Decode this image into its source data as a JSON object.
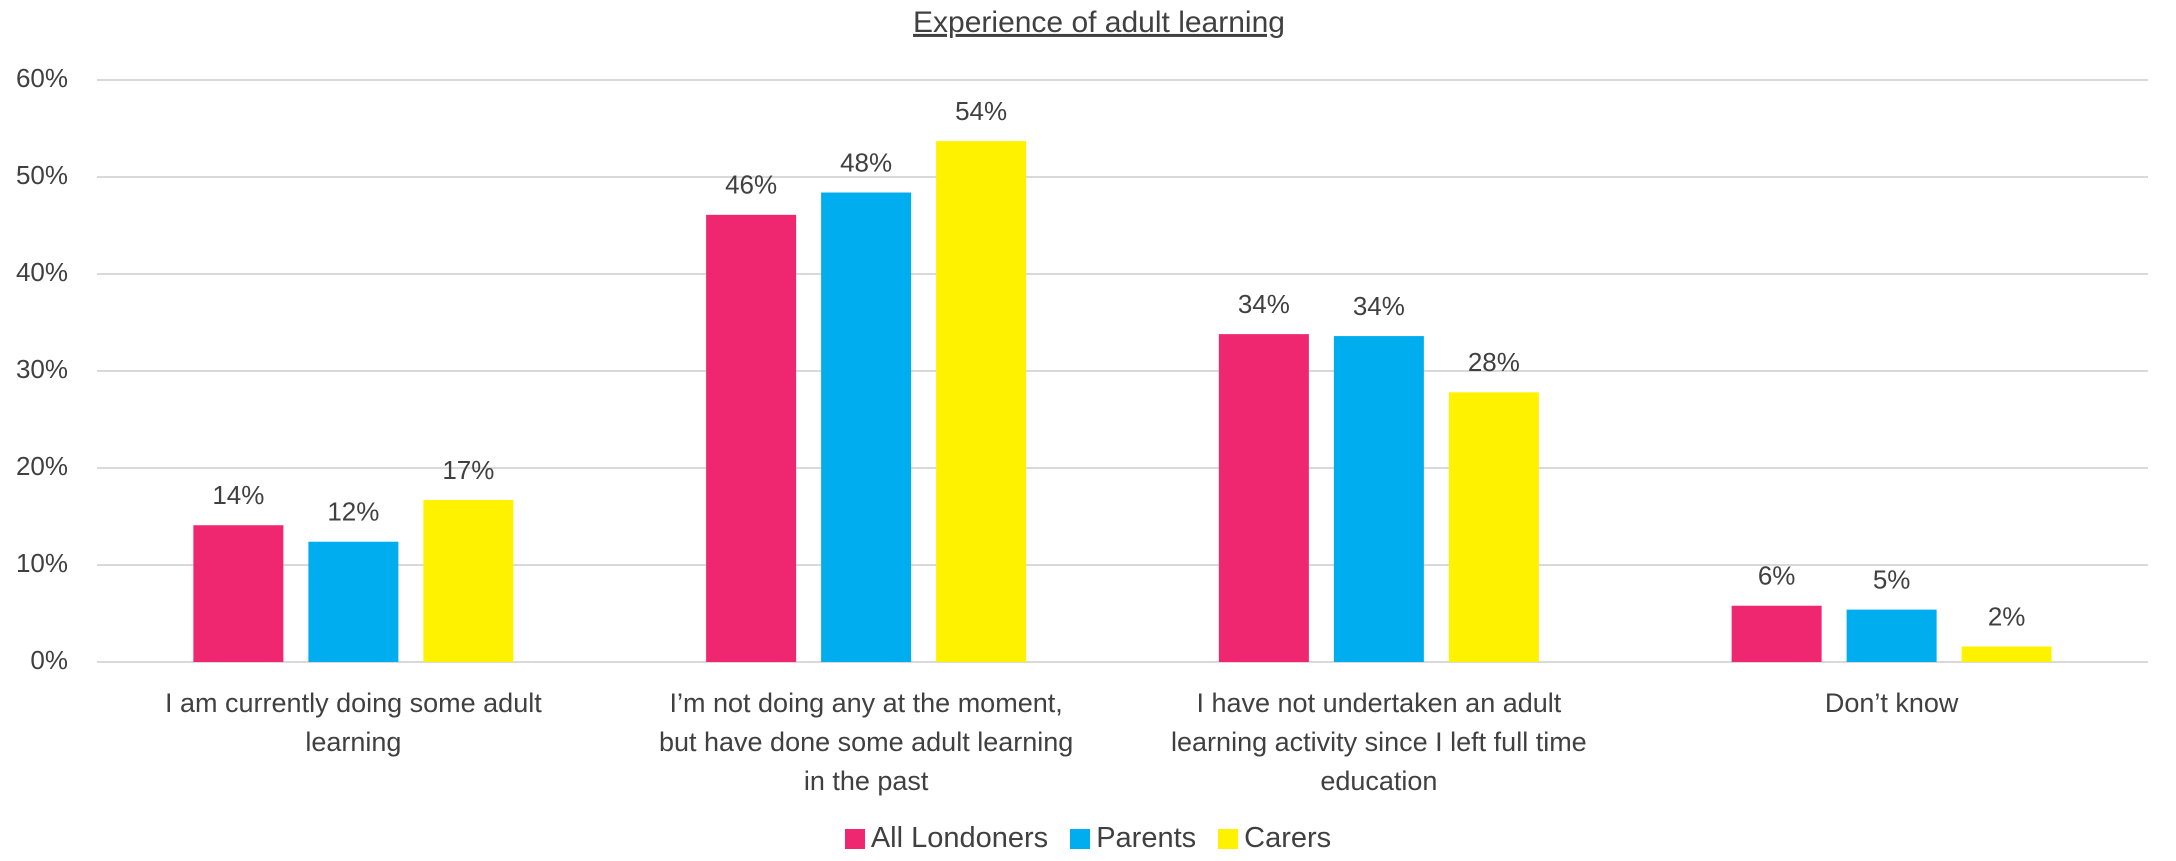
{
  "chart_data": {
    "type": "bar",
    "title": "Experience of adult learning",
    "categories": [
      "I am currently doing some adult learning",
      "I’m not doing any at the moment, but have done some adult learning in the past",
      "I have not undertaken an adult learning activity since I left full time education",
      "Don’t know"
    ],
    "series": [
      {
        "name": "All Londoners",
        "color": "#ef2670",
        "values": [
          14.1,
          46.1,
          33.8,
          5.8
        ],
        "value_labels": [
          "14%",
          "46%",
          "34%",
          "6%"
        ]
      },
      {
        "name": "Parents",
        "color": "#00adee",
        "values": [
          12.4,
          48.4,
          33.6,
          5.4
        ],
        "value_labels": [
          "12%",
          "48%",
          "34%",
          "5%"
        ]
      },
      {
        "name": "Carers",
        "color": "#fff200",
        "values": [
          16.7,
          53.7,
          27.8,
          1.6
        ],
        "value_labels": [
          "17%",
          "54%",
          "28%",
          "2%"
        ]
      }
    ],
    "ylim": [
      0,
      60
    ],
    "yticks": [
      {
        "value": 0,
        "label": "0%"
      },
      {
        "value": 10,
        "label": "10%"
      },
      {
        "value": 20,
        "label": "20%"
      },
      {
        "value": 30,
        "label": "30%"
      },
      {
        "value": 40,
        "label": "40%"
      },
      {
        "value": 50,
        "label": "50%"
      },
      {
        "value": 60,
        "label": "60%"
      }
    ],
    "grid": true,
    "legend": "bottom"
  }
}
